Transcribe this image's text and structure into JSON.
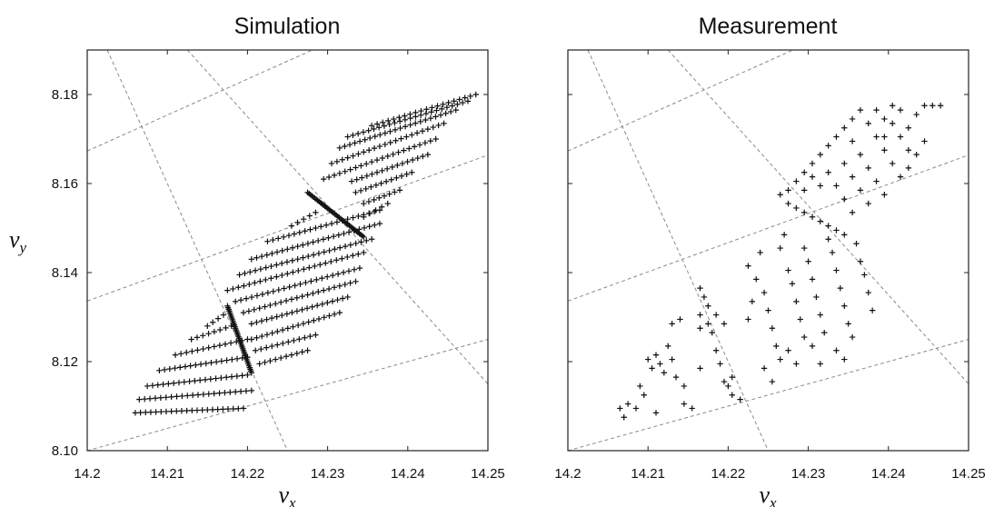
{
  "chart_data": [
    {
      "type": "scatter",
      "title": "Simulation",
      "xlabel": "ν",
      "xlabel_sub": "x",
      "ylabel": "ν",
      "ylabel_sub": "y",
      "xlim": [
        14.2,
        14.25
      ],
      "ylim": [
        8.1,
        8.19
      ],
      "xticks": [
        "14.2",
        "14.21",
        "14.22",
        "14.23",
        "14.24",
        "14.25"
      ],
      "yticks": [
        "8.10",
        "8.12",
        "8.14",
        "8.16",
        "8.18"
      ],
      "marker": "+",
      "grid": false,
      "resonance_lines": [
        {
          "x1": 14.2,
          "y1": 8.1,
          "x2": 14.25,
          "y2": 8.125
        },
        {
          "x1": 14.2,
          "y1": 8.1336,
          "x2": 14.25,
          "y2": 8.1664
        },
        {
          "x1": 14.2,
          "y1": 8.1673,
          "x2": 14.25,
          "y2": 8.2077
        },
        {
          "x1": 14.2025,
          "y1": 8.19,
          "x2": 14.225,
          "y2": 8.1
        },
        {
          "x1": 14.2125,
          "y1": 8.19,
          "x2": 14.25,
          "y2": 8.115
        }
      ],
      "stripes": [
        {
          "x": 14.206,
          "y": 8.1085,
          "x2": 14.2195,
          "y2": 8.1095,
          "n": 22
        },
        {
          "x": 14.2065,
          "y": 8.1115,
          "x2": 14.2205,
          "y2": 8.1135,
          "n": 22
        },
        {
          "x": 14.2075,
          "y": 8.1145,
          "x2": 14.22,
          "y2": 8.117,
          "n": 20
        },
        {
          "x": 14.209,
          "y": 8.118,
          "x2": 14.22,
          "y2": 8.121,
          "n": 18
        },
        {
          "x": 14.211,
          "y": 8.1215,
          "x2": 14.22,
          "y2": 8.125,
          "n": 14
        },
        {
          "x": 14.213,
          "y": 8.125,
          "x2": 14.218,
          "y2": 8.128,
          "n": 8
        },
        {
          "x": 14.215,
          "y": 8.128,
          "x2": 14.217,
          "y2": 8.1305,
          "n": 4
        },
        {
          "x": 14.2205,
          "y": 8.125,
          "x2": 14.2315,
          "y2": 8.131,
          "n": 18
        },
        {
          "x": 14.2205,
          "y": 8.1285,
          "x2": 14.2325,
          "y2": 8.1345,
          "n": 20
        },
        {
          "x": 14.2195,
          "y": 8.131,
          "x2": 14.2335,
          "y2": 8.138,
          "n": 22
        },
        {
          "x": 14.2185,
          "y": 8.1335,
          "x2": 14.234,
          "y2": 8.141,
          "n": 24
        },
        {
          "x": 14.2175,
          "y": 8.136,
          "x2": 14.2345,
          "y2": 8.1445,
          "n": 26
        },
        {
          "x": 14.219,
          "y": 8.1395,
          "x2": 14.2355,
          "y2": 8.1475,
          "n": 26
        },
        {
          "x": 14.2205,
          "y": 8.143,
          "x2": 14.2365,
          "y2": 8.151,
          "n": 26
        },
        {
          "x": 14.2225,
          "y": 8.147,
          "x2": 14.2365,
          "y2": 8.154,
          "n": 22
        },
        {
          "x": 14.2255,
          "y": 8.1505,
          "x2": 14.2285,
          "y2": 8.1535,
          "n": 5
        },
        {
          "x": 14.2345,
          "y": 8.1525,
          "x2": 14.2375,
          "y2": 8.1555,
          "n": 5
        },
        {
          "x": 14.2345,
          "y": 8.1555,
          "x2": 14.239,
          "y2": 8.1585,
          "n": 8
        },
        {
          "x": 14.2335,
          "y": 8.158,
          "x2": 14.2405,
          "y2": 8.1625,
          "n": 12
        },
        {
          "x": 14.233,
          "y": 8.1605,
          "x2": 14.2425,
          "y2": 8.1665,
          "n": 16
        },
        {
          "x": 14.2295,
          "y": 8.161,
          "x2": 14.2435,
          "y2": 8.17,
          "n": 22
        },
        {
          "x": 14.2305,
          "y": 8.1645,
          "x2": 14.2445,
          "y2": 8.1735,
          "n": 22
        },
        {
          "x": 14.2315,
          "y": 8.168,
          "x2": 14.246,
          "y2": 8.1765,
          "n": 24
        },
        {
          "x": 14.2325,
          "y": 8.1705,
          "x2": 14.2475,
          "y2": 8.1785,
          "n": 24
        },
        {
          "x": 14.2355,
          "y": 8.173,
          "x2": 14.2485,
          "y2": 8.18,
          "n": 20
        },
        {
          "x": 14.2215,
          "y": 8.1195,
          "x2": 14.2275,
          "y2": 8.1225,
          "n": 10
        },
        {
          "x": 14.221,
          "y": 8.1225,
          "x2": 14.2285,
          "y2": 8.126,
          "n": 12
        }
      ],
      "ridges": [
        {
          "x": 14.2175,
          "y": 8.1325,
          "x2": 14.2205,
          "y2": 8.1175,
          "n": 40
        },
        {
          "x": 14.2275,
          "y": 8.158,
          "x2": 14.2345,
          "y2": 8.148,
          "n": 40
        }
      ]
    },
    {
      "type": "scatter",
      "title": "Measurement",
      "xlabel": "ν",
      "xlabel_sub": "x",
      "ylabel": "",
      "xlim": [
        14.2,
        14.25
      ],
      "ylim": [
        8.1,
        8.19
      ],
      "xticks": [
        "14.2",
        "14.21",
        "14.22",
        "14.23",
        "14.24",
        "14.25"
      ],
      "yticks": [],
      "marker": "+",
      "grid": false,
      "resonance_lines": [
        {
          "x1": 14.2,
          "y1": 8.1,
          "x2": 14.25,
          "y2": 8.125
        },
        {
          "x1": 14.2,
          "y1": 8.1336,
          "x2": 14.25,
          "y2": 8.1664
        },
        {
          "x1": 14.2,
          "y1": 8.1673,
          "x2": 14.25,
          "y2": 8.2077
        },
        {
          "x1": 14.2025,
          "y1": 8.19,
          "x2": 14.225,
          "y2": 8.1
        },
        {
          "x1": 14.2125,
          "y1": 8.19,
          "x2": 14.25,
          "y2": 8.115
        }
      ],
      "points": [
        [
          14.2065,
          8.1095
        ],
        [
          14.2075,
          8.1105
        ],
        [
          14.207,
          8.1075
        ],
        [
          14.2085,
          8.1095
        ],
        [
          14.209,
          8.1145
        ],
        [
          14.2095,
          8.1125
        ],
        [
          14.21,
          8.1205
        ],
        [
          14.2105,
          8.1185
        ],
        [
          14.211,
          8.1215
        ],
        [
          14.2115,
          8.1195
        ],
        [
          14.211,
          8.1085
        ],
        [
          14.212,
          8.1175
        ],
        [
          14.2125,
          8.1235
        ],
        [
          14.213,
          8.1205
        ],
        [
          14.2135,
          8.1165
        ],
        [
          14.213,
          8.1285
        ],
        [
          14.214,
          8.1295
        ],
        [
          14.2145,
          8.1105
        ],
        [
          14.2155,
          8.1095
        ],
        [
          14.2145,
          8.1145
        ],
        [
          14.2165,
          8.1185
        ],
        [
          14.2165,
          8.1275
        ],
        [
          14.2175,
          8.1325
        ],
        [
          14.217,
          8.1345
        ],
        [
          14.2165,
          8.1365
        ],
        [
          14.218,
          8.1265
        ],
        [
          14.2185,
          8.1225
        ],
        [
          14.219,
          8.1195
        ],
        [
          14.2195,
          8.1155
        ],
        [
          14.22,
          8.1145
        ],
        [
          14.2205,
          8.1125
        ],
        [
          14.2185,
          8.1305
        ],
        [
          14.2195,
          8.1285
        ],
        [
          14.2165,
          8.1305
        ],
        [
          14.2175,
          8.1285
        ],
        [
          14.2215,
          8.1115
        ],
        [
          14.2205,
          8.1165
        ],
        [
          14.2225,
          8.1295
        ],
        [
          14.223,
          8.1335
        ],
        [
          14.2235,
          8.1385
        ],
        [
          14.2225,
          8.1415
        ],
        [
          14.224,
          8.1445
        ],
        [
          14.2245,
          8.1355
        ],
        [
          14.225,
          8.1315
        ],
        [
          14.2255,
          8.1275
        ],
        [
          14.226,
          8.1235
        ],
        [
          14.2265,
          8.1205
        ],
        [
          14.2245,
          8.1185
        ],
        [
          14.2255,
          8.1155
        ],
        [
          14.2265,
          8.1455
        ],
        [
          14.227,
          8.1485
        ],
        [
          14.2275,
          8.1405
        ],
        [
          14.228,
          8.1375
        ],
        [
          14.2285,
          8.1335
        ],
        [
          14.229,
          8.1295
        ],
        [
          14.2295,
          8.1255
        ],
        [
          14.2275,
          8.1225
        ],
        [
          14.2285,
          8.1195
        ],
        [
          14.2295,
          8.1455
        ],
        [
          14.23,
          8.1425
        ],
        [
          14.2305,
          8.1385
        ],
        [
          14.231,
          8.1345
        ],
        [
          14.2315,
          8.1305
        ],
        [
          14.232,
          8.1265
        ],
        [
          14.2305,
          8.1235
        ],
        [
          14.2315,
          8.1195
        ],
        [
          14.2325,
          8.1475
        ],
        [
          14.233,
          8.1445
        ],
        [
          14.2335,
          8.1405
        ],
        [
          14.234,
          8.1365
        ],
        [
          14.2345,
          8.1325
        ],
        [
          14.235,
          8.1285
        ],
        [
          14.2355,
          8.1255
        ],
        [
          14.2335,
          8.1225
        ],
        [
          14.2345,
          8.1205
        ],
        [
          14.236,
          8.1465
        ],
        [
          14.2365,
          8.1425
        ],
        [
          14.237,
          8.1395
        ],
        [
          14.2375,
          8.1355
        ],
        [
          14.238,
          8.1315
        ],
        [
          14.2265,
          8.1575
        ],
        [
          14.2275,
          8.1555
        ],
        [
          14.2285,
          8.1545
        ],
        [
          14.2295,
          8.1535
        ],
        [
          14.2305,
          8.1525
        ],
        [
          14.2315,
          8.1515
        ],
        [
          14.2325,
          8.1505
        ],
        [
          14.2335,
          8.1495
        ],
        [
          14.2345,
          8.1485
        ],
        [
          14.2275,
          8.1585
        ],
        [
          14.2285,
          8.1605
        ],
        [
          14.2295,
          8.1625
        ],
        [
          14.2305,
          8.1645
        ],
        [
          14.2315,
          8.1665
        ],
        [
          14.2325,
          8.1685
        ],
        [
          14.2335,
          8.1705
        ],
        [
          14.2345,
          8.1725
        ],
        [
          14.2355,
          8.1745
        ],
        [
          14.2365,
          8.1765
        ],
        [
          14.2375,
          8.1735
        ],
        [
          14.2385,
          8.1705
        ],
        [
          14.2395,
          8.1675
        ],
        [
          14.2405,
          8.1645
        ],
        [
          14.2415,
          8.1615
        ],
        [
          14.2425,
          8.1635
        ],
        [
          14.2435,
          8.1665
        ],
        [
          14.2445,
          8.1695
        ],
        [
          14.2425,
          8.1725
        ],
        [
          14.2435,
          8.1755
        ],
        [
          14.2445,
          8.1775
        ],
        [
          14.2455,
          8.1775
        ],
        [
          14.2465,
          8.1775
        ],
        [
          14.2385,
          8.1765
        ],
        [
          14.2395,
          8.1745
        ],
        [
          14.2355,
          8.1695
        ],
        [
          14.2365,
          8.1665
        ],
        [
          14.2375,
          8.1635
        ],
        [
          14.2385,
          8.1605
        ],
        [
          14.2395,
          8.1575
        ],
        [
          14.2345,
          8.1645
        ],
        [
          14.2355,
          8.1615
        ],
        [
          14.2365,
          8.1585
        ],
        [
          14.2375,
          8.1555
        ],
        [
          14.2335,
          8.1595
        ],
        [
          14.2345,
          8.1565
        ],
        [
          14.2355,
          8.1535
        ],
        [
          14.2405,
          8.1735
        ],
        [
          14.2415,
          8.1705
        ],
        [
          14.2425,
          8.1675
        ],
        [
          14.2315,
          8.1595
        ],
        [
          14.2305,
          8.1615
        ],
        [
          14.2295,
          8.1585
        ],
        [
          14.2325,
          8.1625
        ],
        [
          14.2415,
          8.1765
        ],
        [
          14.2405,
          8.1775
        ],
        [
          14.2395,
          8.1705
        ]
      ]
    }
  ]
}
